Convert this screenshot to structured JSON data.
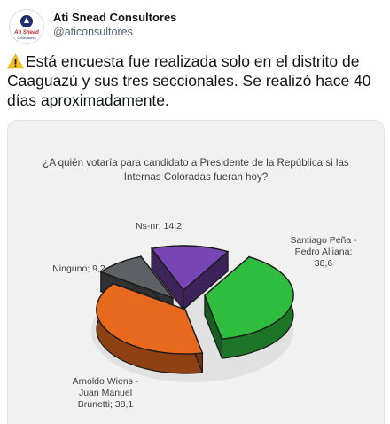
{
  "tweet": {
    "author_name": "Ati Snead Consultores",
    "handle": "@aticonsultores",
    "avatar_text": "Ati Snead",
    "avatar_subtext": "Consultores",
    "text": "Está encuesta fue realizada solo en el distrito de Caaguazú y sus tres seccionales. Se realizó hace 40 días aproximadamente.",
    "icon": "warning-icon"
  },
  "chart_data": {
    "type": "pie",
    "title": "¿A quién votaría para candidato a Presidente de la República si las Internas Coloradas fueran hoy?",
    "slices": [
      {
        "label": "Santiago Peña - Pedro Alliana",
        "value": 38.6,
        "color": "#2ebd3f"
      },
      {
        "label": "Arnoldo Wiens - Juan Manuel Brunetti",
        "value": 38.1,
        "color": "#e8691e"
      },
      {
        "label": "Ninguno",
        "value": 9.2,
        "color": "#5d6064"
      },
      {
        "label": "Ns-nr",
        "value": 14.2,
        "color": "#7745b4"
      }
    ],
    "labels": {
      "pena": [
        "Santiago Peña -",
        "Pedro Alliana;",
        "38,6"
      ],
      "wiens": [
        "Arnoldo Wiens -",
        "Juan Manuel",
        "Brunetti; 38,1"
      ],
      "ninguno": "Ninguno; 9,2",
      "nsnr": "Ns-nr; 14,2"
    }
  }
}
